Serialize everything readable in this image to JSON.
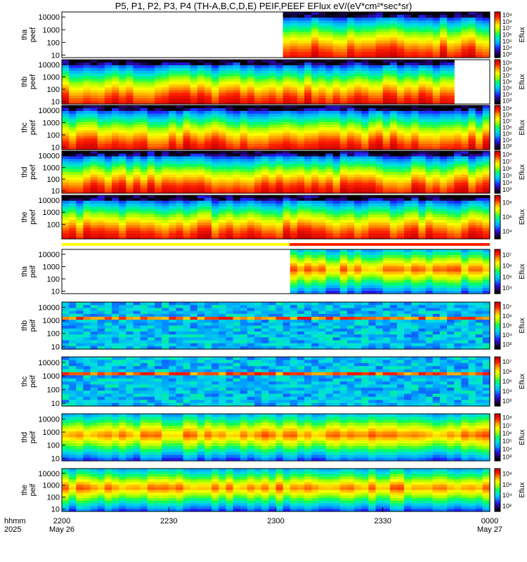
{
  "title": "P5, P1, P2, P3, P4 (TH-A,B,C,D,E) PEIF,PEEF EFlux eV/(eV*cm²*sec*sr)",
  "x_footer": {
    "row1_label": "hhmm",
    "row2_label": "2025",
    "ticks": [
      {
        "time": "2200",
        "date": "May 26"
      },
      {
        "time": "2230",
        "date": ""
      },
      {
        "time": "2300",
        "date": ""
      },
      {
        "time": "2330",
        "date": ""
      },
      {
        "time": "0000",
        "date": "May 27"
      }
    ]
  },
  "colorbar_label": "Eflux",
  "colors": {
    "palette": [
      "#000000",
      "#2a007a",
      "#2020ff",
      "#00a0ff",
      "#00e0e0",
      "#00ff60",
      "#a0ff00",
      "#ffff00",
      "#ffa000",
      "#ff2000",
      "#cc0000"
    ]
  },
  "chart_data": {
    "type": "heatmap",
    "x_range": [
      "2025-05-26 22:00",
      "2025-05-27 00:00"
    ],
    "y_scale": "log",
    "panels": [
      {
        "probe": "tha",
        "species": "peef",
        "ylabel": [
          "tha",
          "peef"
        ],
        "yticks": [
          "10000",
          "1000",
          "100",
          "10"
        ],
        "cbar_ticks": [
          "10⁹",
          "10⁸",
          "10⁷",
          "10⁶",
          "10⁵",
          "10⁴",
          "10³"
        ],
        "data_start_min": 62,
        "peak_level": 9.2
      },
      {
        "probe": "thb",
        "species": "peef",
        "ylabel": [
          "thb",
          "peef"
        ],
        "yticks": [
          "10000",
          "1000",
          "100",
          "10"
        ],
        "cbar_ticks": [
          "10⁹",
          "10⁸",
          "10⁷",
          "10⁶",
          "10⁵",
          "10⁴",
          "10³"
        ],
        "data_end_min": 110,
        "peak_level": 9.5
      },
      {
        "probe": "thc",
        "species": "peef",
        "ylabel": [
          "thc",
          "peef"
        ],
        "yticks": [
          "10000",
          "1000",
          "100",
          "10"
        ],
        "cbar_ticks": [
          "10⁹",
          "10⁸",
          "10⁷",
          "10⁶",
          "10⁵",
          "10⁴",
          "10³"
        ],
        "peak_level": 9.6
      },
      {
        "probe": "thd",
        "species": "peef",
        "ylabel": [
          "thd",
          "peef"
        ],
        "yticks": [
          "10000",
          "1000",
          "100",
          "10"
        ],
        "cbar_ticks": [
          "10⁸",
          "10⁷",
          "10⁶",
          "10⁵",
          "10⁴",
          "10³"
        ],
        "peak_level": 9.5
      },
      {
        "probe": "the",
        "species": "peef",
        "ylabel": [
          "the",
          "peef"
        ],
        "yticks": [
          "10000",
          "1000",
          "100"
        ],
        "cbar_ticks": [
          "10⁸",
          "10⁶",
          "10⁴"
        ],
        "peak_level": 9.3
      },
      {
        "probe": "tha",
        "species": "peif",
        "ylabel": [
          "tha",
          "peif"
        ],
        "yticks": [
          "10000",
          "1000",
          "100",
          "10"
        ],
        "cbar_ticks": [
          "10⁷",
          "10⁶",
          "10⁵",
          "10⁴"
        ],
        "data_start_min": 63,
        "peak_level": 7.5
      },
      {
        "probe": "thb",
        "species": "peif",
        "ylabel": [
          "thb",
          "peif"
        ],
        "yticks": [
          "10000",
          "1000",
          "100",
          "10"
        ],
        "cbar_ticks": [
          "10⁷",
          "10⁶",
          "10⁵",
          "10⁴",
          "10³"
        ],
        "peak_level": 6.0
      },
      {
        "probe": "thc",
        "species": "peif",
        "ylabel": [
          "thc",
          "peif"
        ],
        "yticks": [
          "10000",
          "1000",
          "100",
          "10"
        ],
        "cbar_ticks": [
          "10⁷",
          "10⁶",
          "10⁵",
          "10⁴",
          "10³"
        ],
        "peak_level": 5.8
      },
      {
        "probe": "thd",
        "species": "peif",
        "ylabel": [
          "thd",
          "peif"
        ],
        "yticks": [
          "10000",
          "1000",
          "100",
          "10"
        ],
        "cbar_ticks": [
          "10⁸",
          "10⁷",
          "10⁶",
          "10⁵",
          "10⁴",
          "10³"
        ],
        "peak_level": 6.5
      },
      {
        "probe": "the",
        "species": "peif",
        "ylabel": [
          "the",
          "peif"
        ],
        "yticks": [
          "10000",
          "1000",
          "100",
          "10"
        ],
        "cbar_ticks": [
          "10⁸",
          "10⁶",
          "10⁴",
          "10²"
        ],
        "peak_level": 6.8
      }
    ]
  }
}
